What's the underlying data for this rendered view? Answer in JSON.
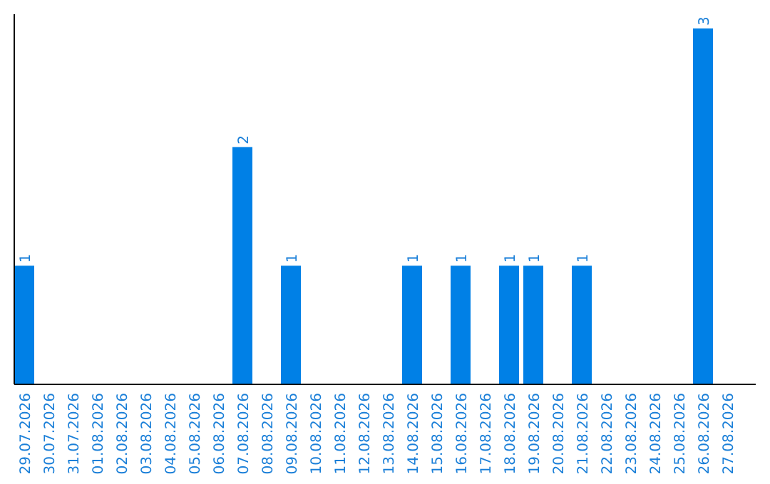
{
  "chart_data": {
    "type": "bar",
    "categories": [
      "29.07.2026",
      "30.07.2026",
      "31.07.2026",
      "01.08.2026",
      "02.08.2026",
      "03.08.2026",
      "04.08.2026",
      "05.08.2026",
      "06.08.2026",
      "07.08.2026",
      "08.08.2026",
      "09.08.2026",
      "10.08.2026",
      "11.08.2026",
      "12.08.2026",
      "13.08.2026",
      "14.08.2026",
      "15.08.2026",
      "16.08.2026",
      "17.08.2026",
      "18.08.2026",
      "19.08.2026",
      "20.08.2026",
      "21.08.2026",
      "22.08.2026",
      "23.08.2026",
      "24.08.2026",
      "25.08.2026",
      "26.08.2026",
      "27.08.2026"
    ],
    "values": [
      1,
      null,
      null,
      null,
      null,
      null,
      null,
      null,
      null,
      2,
      null,
      1,
      null,
      null,
      null,
      null,
      1,
      null,
      1,
      null,
      1,
      1,
      null,
      1,
      null,
      null,
      null,
      null,
      3,
      null
    ],
    "color": "#0080e6",
    "data_labels": true,
    "tick_labels": "x"
  }
}
